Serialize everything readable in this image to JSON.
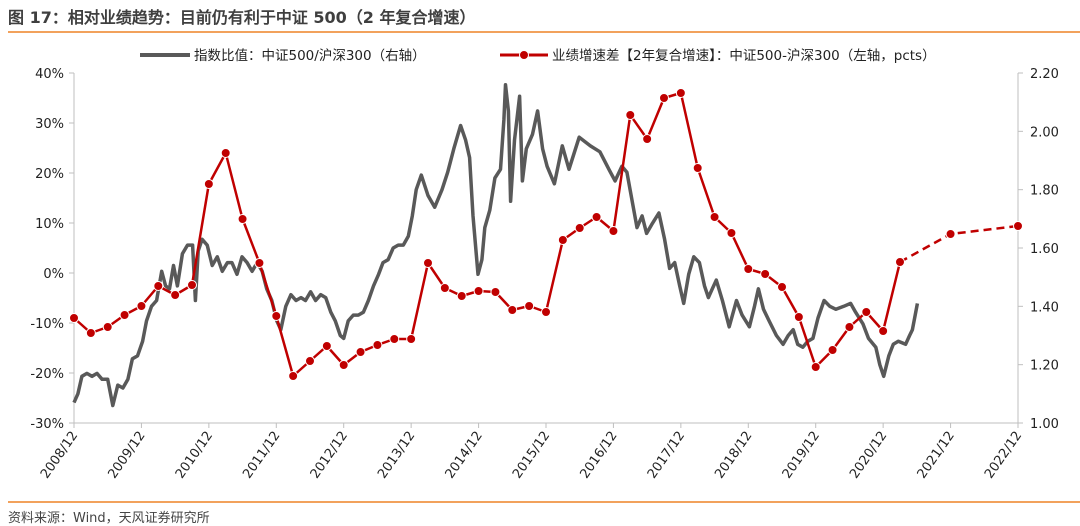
{
  "title": "图 17：相对业绩趋势：目前仍有利于中证 500（2 年复合增速）",
  "source": "资料来源：Wind，天风证券研究所",
  "colors": {
    "ratio_line": "#595959",
    "spread_line": "#C00000",
    "rule": "#F2A25C",
    "axis": "#BFBFBF"
  },
  "chart_data": {
    "type": "line",
    "title": "",
    "x_unit": "months since 2008/12",
    "xlim": [
      0,
      168
    ],
    "x_tick_labels": [
      "2008/12",
      "2009/12",
      "2010/12",
      "2011/12",
      "2012/12",
      "2013/12",
      "2014/12",
      "2015/12",
      "2016/12",
      "2017/12",
      "2018/12",
      "2019/12",
      "2020/12",
      "2021/12",
      "2022/12"
    ],
    "y_left": {
      "ylim": [
        -30,
        40
      ],
      "step": 10,
      "tick_labels": [
        "-30%",
        "-20%",
        "-10%",
        "0%",
        "10%",
        "20%",
        "30%",
        "40%"
      ]
    },
    "y_right": {
      "ylim": [
        1.0,
        2.2
      ],
      "step": 0.2,
      "tick_labels": [
        "1.00",
        "1.20",
        "1.40",
        "1.60",
        "1.80",
        "2.00",
        "2.20"
      ]
    },
    "legend_placement": "top",
    "series": [
      {
        "name": "指数比值：中证500/沪深300（右轴）",
        "axis": "right",
        "style": "line",
        "x": [
          0,
          0.7,
          1.4,
          2.3,
          3.2,
          4.1,
          5.0,
          6.0,
          6.9,
          7.8,
          8.7,
          9.6,
          10.4,
          11.3,
          12.2,
          12.9,
          13.8,
          14.7,
          15.6,
          16.3,
          17.0,
          17.7,
          18.4,
          19.3,
          20.2,
          21.1,
          21.6,
          22.1,
          22.8,
          23.7,
          24.6,
          25.5,
          26.4,
          27.3,
          28.1,
          29.0,
          29.9,
          30.8,
          31.7,
          32.6,
          33.5,
          34.3,
          35.2,
          36.1,
          36.8,
          37.7,
          38.6,
          39.5,
          40.4,
          41.2,
          42.1,
          43.0,
          43.9,
          44.8,
          45.7,
          46.5,
          47.4,
          48.0,
          48.8,
          49.7,
          50.6,
          51.5,
          52.4,
          53.3,
          54.2,
          55.0,
          55.9,
          56.8,
          57.7,
          58.6,
          59.5,
          60.2,
          60.9,
          61.8,
          63.0,
          64.2,
          65.5,
          66.5,
          67.6,
          68.8,
          69.7,
          70.4,
          71.0,
          71.9,
          72.6,
          73.1,
          74.0,
          74.9,
          75.9,
          76.5,
          76.8,
          77.3,
          77.7,
          78.4,
          79.3,
          79.8,
          80.5,
          81.6,
          82.5,
          83.4,
          84.2,
          85.5,
          86.9,
          88.1,
          89.9,
          91.9,
          93.6,
          95.2,
          96.3,
          97.5,
          98.4,
          100.2,
          101.1,
          101.9,
          102.8,
          104.1,
          105.1,
          106.0,
          106.9,
          107.8,
          108.5,
          109.4,
          110.3,
          111.3,
          112.2,
          112.9,
          113.6,
          114.3,
          115.4,
          116.6,
          117.9,
          118.9,
          120.2,
          121.1,
          121.8,
          122.7,
          123.7,
          125.0,
          126.2,
          127.1,
          128.0,
          128.8,
          129.7,
          130.6,
          131.5,
          132.4,
          133.5,
          134.5,
          135.6,
          137.0,
          138.2,
          139.1,
          140.4,
          141.4,
          142.7,
          143.4,
          144.1,
          145.0,
          145.8,
          146.7,
          148.0,
          148.7,
          149.2,
          149.7,
          150.1
        ],
        "values": [
          1.07,
          1.1,
          1.16,
          1.17,
          1.16,
          1.17,
          1.15,
          1.15,
          1.06,
          1.13,
          1.12,
          1.15,
          1.22,
          1.23,
          1.28,
          1.35,
          1.4,
          1.42,
          1.52,
          1.47,
          1.46,
          1.54,
          1.47,
          1.58,
          1.61,
          1.61,
          1.42,
          1.59,
          1.63,
          1.61,
          1.54,
          1.57,
          1.52,
          1.55,
          1.55,
          1.51,
          1.57,
          1.55,
          1.52,
          1.55,
          1.52,
          1.46,
          1.42,
          1.35,
          1.32,
          1.4,
          1.44,
          1.42,
          1.43,
          1.42,
          1.45,
          1.42,
          1.44,
          1.43,
          1.38,
          1.35,
          1.3,
          1.29,
          1.35,
          1.37,
          1.37,
          1.38,
          1.42,
          1.47,
          1.51,
          1.55,
          1.56,
          1.6,
          1.61,
          1.61,
          1.64,
          1.71,
          1.8,
          1.85,
          1.78,
          1.74,
          1.8,
          1.86,
          1.94,
          2.02,
          1.97,
          1.91,
          1.71,
          1.51,
          1.56,
          1.67,
          1.73,
          1.84,
          1.87,
          2.04,
          2.16,
          2.07,
          1.76,
          1.97,
          2.12,
          1.83,
          1.94,
          1.99,
          2.07,
          1.94,
          1.88,
          1.82,
          1.95,
          1.87,
          1.98,
          1.95,
          1.93,
          1.87,
          1.83,
          1.88,
          1.86,
          1.67,
          1.71,
          1.65,
          1.68,
          1.72,
          1.63,
          1.53,
          1.55,
          1.47,
          1.41,
          1.51,
          1.57,
          1.55,
          1.47,
          1.43,
          1.46,
          1.49,
          1.42,
          1.33,
          1.42,
          1.37,
          1.33,
          1.4,
          1.46,
          1.39,
          1.35,
          1.3,
          1.27,
          1.3,
          1.32,
          1.27,
          1.26,
          1.28,
          1.29,
          1.36,
          1.42,
          1.4,
          1.39,
          1.4,
          1.41,
          1.38,
          1.34,
          1.29,
          1.26,
          1.2,
          1.16,
          1.23,
          1.27,
          1.28,
          1.27,
          1.3,
          1.32,
          1.37,
          1.41
        ]
      },
      {
        "name": "业绩增速差【2年复合增速】：中证500-沪深300（左轴，pcts）",
        "axis": "left",
        "style": "line-markers",
        "forecast_from_index": 49,
        "x": [
          0,
          3,
          6,
          9,
          12,
          15,
          18,
          21,
          24,
          27,
          30,
          33,
          36,
          39,
          42,
          45,
          48,
          51,
          54,
          57,
          60,
          63,
          66,
          69,
          72,
          75,
          78,
          81,
          84,
          87,
          90,
          93,
          96,
          99,
          102,
          105,
          108,
          111,
          114,
          117,
          120,
          123,
          126,
          129,
          132,
          135,
          138,
          141,
          144,
          147,
          156,
          168
        ],
        "values": [
          -9,
          -12,
          -10.8,
          -8.4,
          -6.6,
          -2.6,
          -4.4,
          -2.4,
          17.8,
          24,
          10.8,
          2,
          -8.6,
          -20.6,
          -17.6,
          -14.6,
          -18.4,
          -15.8,
          -14.4,
          -13.2,
          -13.2,
          2,
          -3,
          -4.6,
          -3.6,
          -3.8,
          -7.4,
          -6.6,
          -7.8,
          6.6,
          9,
          11.2,
          8.4,
          31.6,
          26.8,
          35,
          36,
          21,
          11.2,
          8,
          0.8,
          -0.2,
          -2.8,
          -8.8,
          -18.8,
          -15.4,
          -10.8,
          -7.8,
          -11.6,
          2.2,
          7.8,
          9.4
        ]
      }
    ]
  }
}
